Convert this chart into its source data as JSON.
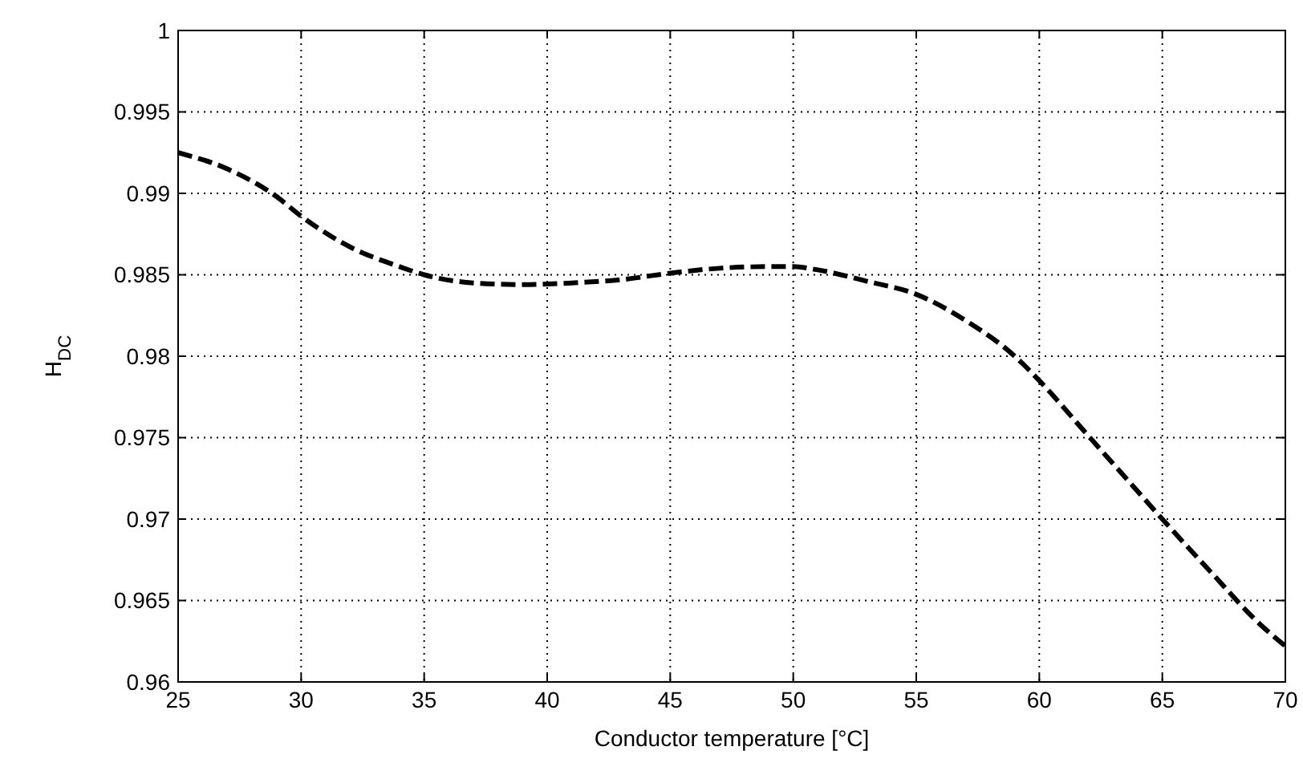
{
  "chart_data": {
    "type": "line",
    "xlabel": "Conductor temperature [°C]",
    "ylabel": "H$_{DC}$",
    "xlim": [
      25,
      70
    ],
    "xticks": [
      25,
      30,
      35,
      40,
      45,
      50,
      55,
      60,
      65,
      70
    ],
    "ylim": [
      0.96,
      1
    ],
    "yticks": [
      0.96,
      0.965,
      0.97,
      0.975,
      0.98,
      0.985,
      0.99,
      0.995,
      1
    ],
    "grid": true,
    "line_style": "dashed",
    "series": [
      {
        "color": "#000000",
        "x": [
          25,
          27,
          29,
          30,
          32,
          34,
          35,
          37,
          39,
          41,
          43,
          45,
          47,
          49,
          50,
          51,
          53,
          55,
          57,
          59,
          60,
          62,
          64,
          65,
          67,
          69,
          70
        ],
        "values": [
          0.9925,
          0.9915,
          0.9898,
          0.9886,
          0.9867,
          0.9855,
          0.985,
          0.9845,
          0.9844,
          0.9845,
          0.9847,
          0.9851,
          0.9854,
          0.9855,
          0.9855,
          0.9853,
          0.9846,
          0.9838,
          0.9822,
          0.98,
          0.9785,
          0.9751,
          0.9717,
          0.97,
          0.9667,
          0.9635,
          0.9622
        ]
      }
    ]
  }
}
